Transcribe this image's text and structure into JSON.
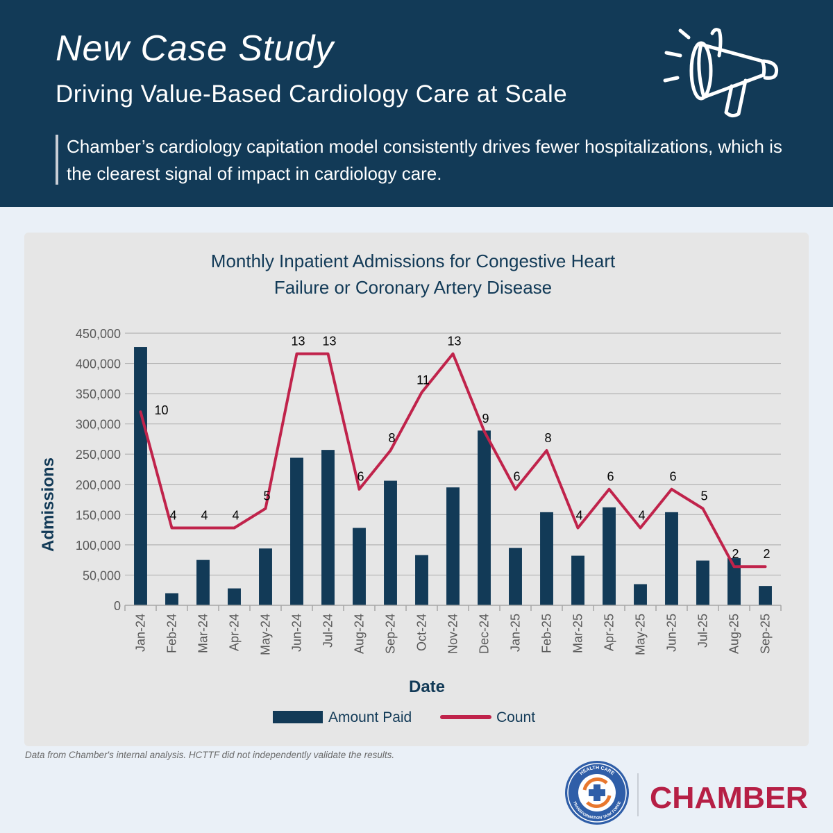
{
  "header": {
    "title": "New Case Study",
    "subtitle": "Driving Value-Based Cardiology Care at Scale",
    "quote": "Chamber’s cardiology capitation model consistently drives fewer hospitalizations, which is the clearest signal of impact in cardiology care."
  },
  "icons": {
    "megaphone": "megaphone-icon",
    "hctf_logo": "hctf-logo-icon"
  },
  "colors": {
    "navy": "#123a57",
    "bar": "#123a57",
    "line": "#c0234b",
    "background": "#eaf0f7",
    "card": "#e6e6e6"
  },
  "chart_data": {
    "type": "bar",
    "title_lines": [
      "Monthly Inpatient Admissions for Congestive Heart",
      "Failure or Coronary Artery Disease"
    ],
    "xlabel": "Date",
    "ylabel": "Admissions",
    "ylim": [
      0,
      450000
    ],
    "yticks": [
      0,
      50000,
      100000,
      150000,
      200000,
      250000,
      300000,
      350000,
      400000,
      450000
    ],
    "ytick_labels": [
      "0",
      "50,000",
      "100,000",
      "150,000",
      "200,000",
      "250,000",
      "300,000",
      "350,000",
      "400,000",
      "450,000"
    ],
    "grid": true,
    "legend_position": "bottom-center",
    "categories": [
      "Jan-24",
      "Feb-24",
      "Mar-24",
      "Apr-24",
      "May-24",
      "Jun-24",
      "Jul-24",
      "Aug-24",
      "Sep-24",
      "Oct-24",
      "Nov-24",
      "Dec-24",
      "Jan-25",
      "Feb-25",
      "Mar-25",
      "Apr-25",
      "May-25",
      "Jun-25",
      "Jul-25",
      "Aug-25",
      "Sep-25"
    ],
    "series": [
      {
        "name": "Amount Paid",
        "type": "bar",
        "values": [
          427000,
          20000,
          75000,
          28000,
          94000,
          244000,
          257000,
          128000,
          206000,
          83000,
          195000,
          289000,
          95000,
          154000,
          82000,
          162000,
          35000,
          154000,
          74000,
          78000,
          32000
        ]
      },
      {
        "name": "Count",
        "type": "line",
        "values": [
          10,
          4,
          4,
          4,
          5,
          13,
          13,
          6,
          8,
          11,
          13,
          9,
          6,
          8,
          4,
          6,
          4,
          6,
          5,
          2,
          2
        ],
        "labels": [
          "10",
          "4",
          "4",
          "4",
          "5",
          "13",
          "13",
          "6",
          "8",
          "11",
          "13",
          "9",
          "6",
          "8",
          "4",
          "6",
          "4",
          "6",
          "5",
          "2",
          "2"
        ],
        "scale_per_unit": 32000
      }
    ]
  },
  "footnote": "Data from Chamber's internal analysis. HCTTF did not independently validate the results.",
  "brand": {
    "name": "CHAMBER",
    "hctf_ring_top": "HEALTH CARE",
    "hctf_ring_bottom": "TRANSFORMATION TASK FORCE"
  }
}
